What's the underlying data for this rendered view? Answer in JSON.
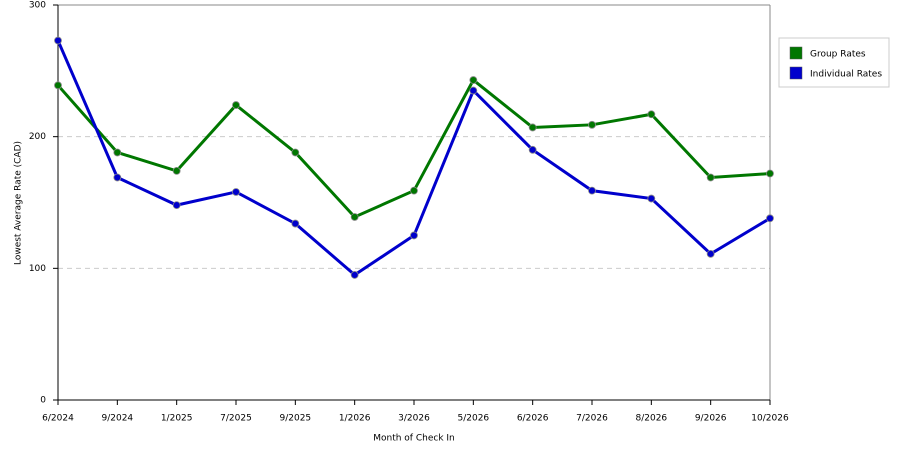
{
  "chart_data": {
    "type": "line",
    "x_label": "Month of Check In",
    "y_label": "Lowest Average Rate (CAD)",
    "categories": [
      "6/2024",
      "9/2024",
      "1/2025",
      "7/2025",
      "9/2025",
      "1/2026",
      "3/2026",
      "5/2026",
      "6/2026",
      "7/2026",
      "8/2026",
      "9/2026",
      "10/2026"
    ],
    "series": [
      {
        "name": "Group Rates",
        "color": "#007700",
        "values": [
          239,
          188,
          174,
          224,
          188,
          139,
          159,
          243,
          207,
          209,
          217,
          169,
          172
        ]
      },
      {
        "name": "Individual Rates",
        "color": "#0000cc",
        "values": [
          273,
          169,
          148,
          158,
          134,
          95,
          125,
          235,
          190,
          159,
          153,
          111,
          138
        ]
      }
    ],
    "ylim": [
      0,
      300
    ],
    "yticks": [
      0,
      100,
      200,
      300
    ],
    "grid": true
  }
}
